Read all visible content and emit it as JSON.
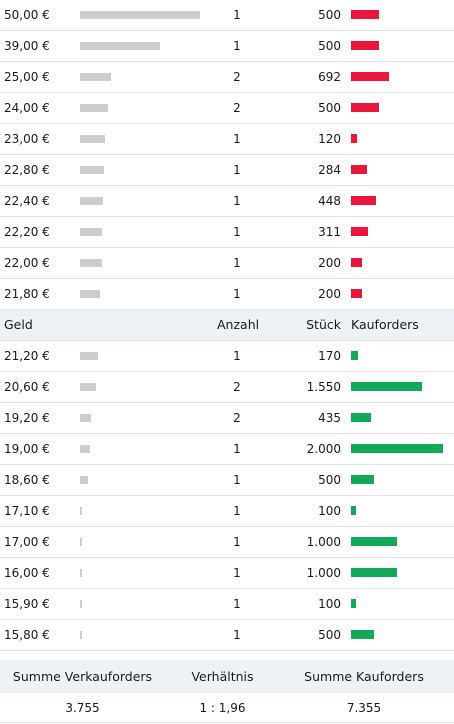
{
  "sell_orders": [
    {
      "price": "50,00 €",
      "count": "1",
      "qty": "500",
      "gauge": 1.0,
      "share": 0.3
    },
    {
      "price": "39,00 €",
      "count": "1",
      "qty": "500",
      "gauge": 0.67,
      "share": 0.3
    },
    {
      "price": "25,00 €",
      "count": "2",
      "qty": "692",
      "gauge": 0.26,
      "share": 0.41
    },
    {
      "price": "24,00 €",
      "count": "2",
      "qty": "500",
      "gauge": 0.23,
      "share": 0.3
    },
    {
      "price": "23,00 €",
      "count": "1",
      "qty": "120",
      "gauge": 0.21,
      "share": 0.07
    },
    {
      "price": "22,80 €",
      "count": "1",
      "qty": "284",
      "gauge": 0.2,
      "share": 0.17
    },
    {
      "price": "22,40 €",
      "count": "1",
      "qty": "448",
      "gauge": 0.19,
      "share": 0.27
    },
    {
      "price": "22,20 €",
      "count": "1",
      "qty": "311",
      "gauge": 0.18,
      "share": 0.19
    },
    {
      "price": "22,00 €",
      "count": "1",
      "qty": "200",
      "gauge": 0.18,
      "share": 0.12
    },
    {
      "price": "21,80 €",
      "count": "1",
      "qty": "200",
      "gauge": 0.17,
      "share": 0.12
    }
  ],
  "buy_header": {
    "geld": "Geld",
    "anzahl": "Anzahl",
    "stueck": "Stück",
    "kauforders": "Kauforders"
  },
  "buy_orders": [
    {
      "price": "21,20 €",
      "count": "1",
      "qty": "170",
      "gauge": 0.15,
      "share": 0.08
    },
    {
      "price": "20,60 €",
      "count": "2",
      "qty": "1.550",
      "gauge": 0.13,
      "share": 0.77
    },
    {
      "price": "19,20 €",
      "count": "2",
      "qty": "435",
      "gauge": 0.09,
      "share": 0.22
    },
    {
      "price": "19,00 €",
      "count": "1",
      "qty": "2.000",
      "gauge": 0.08,
      "share": 1.0
    },
    {
      "price": "18,60 €",
      "count": "1",
      "qty": "500",
      "gauge": 0.07,
      "share": 0.25
    },
    {
      "price": "17,10 €",
      "count": "1",
      "qty": "100",
      "gauge": 0.02,
      "share": 0.05
    },
    {
      "price": "17,00 €",
      "count": "1",
      "qty": "1.000",
      "gauge": 0.02,
      "share": 0.5
    },
    {
      "price": "16,00 €",
      "count": "1",
      "qty": "1.000",
      "gauge": 0.01,
      "share": 0.5
    },
    {
      "price": "15,90 €",
      "count": "1",
      "qty": "100",
      "gauge": 0.01,
      "share": 0.05
    },
    {
      "price": "15,80 €",
      "count": "1",
      "qty": "500",
      "gauge": 0.01,
      "share": 0.25
    }
  ],
  "summary": {
    "labels": {
      "sell": "Summe Verkauforders",
      "ratio": "Verhältnis",
      "buy": "Summe Kauforders"
    },
    "values": {
      "sell": "3.755",
      "ratio": "1 : 1,96",
      "buy": "7.355"
    }
  },
  "colors": {
    "sell_bar": "#e8173b",
    "buy_bar": "#14a85a",
    "price_gauge": "#cdcdcd",
    "header_bg": "#eef2f5"
  }
}
